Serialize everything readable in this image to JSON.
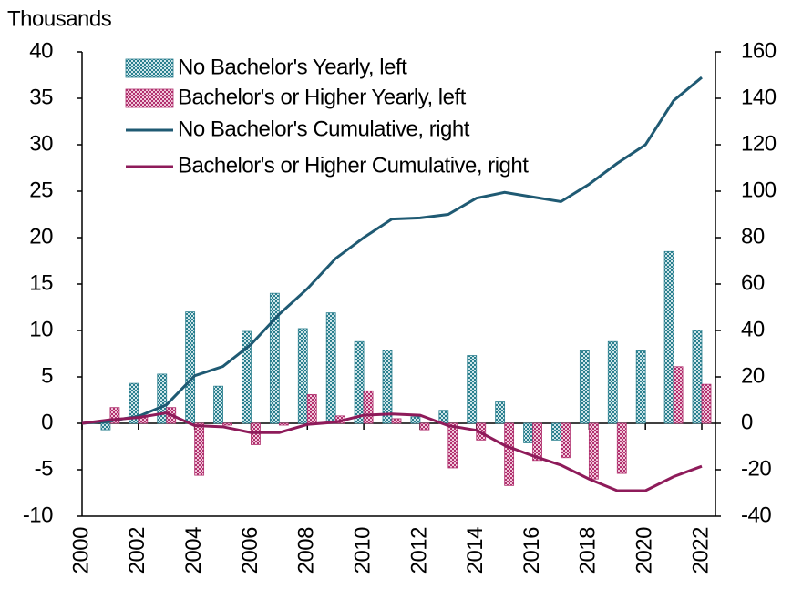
{
  "chart_data": {
    "type": "bar_line",
    "y_axis_label": "Thousands",
    "x": [
      2000,
      2001,
      2002,
      2003,
      2004,
      2005,
      2006,
      2007,
      2008,
      2009,
      2010,
      2011,
      2012,
      2013,
      2014,
      2015,
      2016,
      2017,
      2018,
      2019,
      2020,
      2021,
      2022
    ],
    "xlim": [
      2000,
      2022
    ],
    "xticks": [
      2000,
      2002,
      2004,
      2006,
      2008,
      2010,
      2012,
      2014,
      2016,
      2018,
      2020,
      2022
    ],
    "ylim": [
      -10,
      40
    ],
    "yticks": [
      -10,
      -5,
      0,
      5,
      10,
      15,
      20,
      25,
      30,
      35,
      40
    ],
    "y2lim": [
      -40,
      160
    ],
    "y2ticks": [
      -40,
      -20,
      0,
      20,
      40,
      60,
      80,
      100,
      120,
      140,
      160
    ],
    "legend": "upper left",
    "series": [
      {
        "name": "No Bachelor's Yearly, left",
        "kind": "bar",
        "color": "#2a7f8e",
        "values": [
          null,
          -0.7,
          4.3,
          5.3,
          12,
          4,
          9.9,
          14,
          10.2,
          11.9,
          8.8,
          7.9,
          0.7,
          1.4,
          7.3,
          2.3,
          -2.1,
          -1.8,
          7.8,
          8.8,
          7.8,
          18.5,
          10
        ]
      },
      {
        "name": "Bachelor's or Higher Yearly, left",
        "kind": "bar",
        "color": "#b0306e",
        "values": [
          null,
          1.7,
          0.8,
          1.7,
          -5.6,
          -0.2,
          -2.3,
          -0.2,
          3.1,
          0.8,
          3.5,
          0.5,
          -0.7,
          -4.8,
          -1.8,
          -6.7,
          -4,
          -3.7,
          -6,
          -5.4,
          0,
          6.1,
          4.2
        ]
      },
      {
        "name": "No Bachelor's Cumulative, right",
        "kind": "line",
        "axis": "y2",
        "color": "#1f5a73",
        "values": [
          0,
          1,
          3,
          8,
          20.5,
          24.5,
          34,
          47,
          58,
          71,
          80,
          88,
          88.5,
          90,
          97,
          99.5,
          97.5,
          95.5,
          103,
          112,
          120,
          139,
          149
        ]
      },
      {
        "name": "Bachelor's or Higher Cumulative, right",
        "kind": "line",
        "axis": "y2",
        "color": "#8e1b5a",
        "values": [
          0,
          1.5,
          2.5,
          4.5,
          -1,
          -1.5,
          -4,
          -4,
          -0.5,
          0.5,
          3.5,
          4,
          3.5,
          -1,
          -3,
          -9.5,
          -14,
          -18,
          -24,
          -29,
          -29,
          -23,
          -18.5
        ]
      }
    ]
  }
}
